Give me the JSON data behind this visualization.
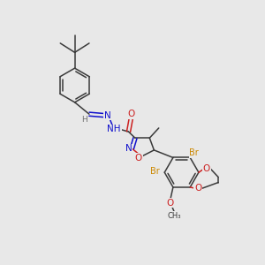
{
  "background_color": "#e8e8e8",
  "figsize": [
    3.0,
    3.0
  ],
  "dpi": 100,
  "colors": {
    "carbon": "#3a3a3a",
    "nitrogen": "#1010cc",
    "oxygen": "#cc2020",
    "bromine": "#cc8800",
    "hydrogen": "#707070",
    "bond": "#3a3a3a",
    "background": "#e8e8e8"
  },
  "layout": {
    "xlim": [
      0,
      10
    ],
    "ylim": [
      0,
      10
    ]
  }
}
